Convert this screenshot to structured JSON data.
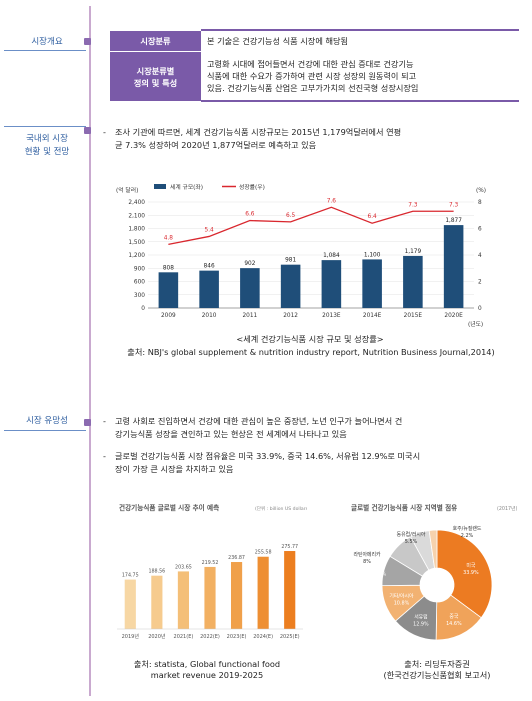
{
  "sections": {
    "overview": "시장개요",
    "status": [
      "국내외 시장",
      "현황 및 전망"
    ],
    "promising": "시장 유망성"
  },
  "classification": {
    "row1_head": "시장분류",
    "row1_value": "본 기술은 건강기능성 식품 시장에 해당됨",
    "row2_head": [
      "시장분류별",
      "정의 및 특성"
    ],
    "row2_value": [
      "고령화 시대에 접어들면서 건강에 대한 관심 증대로 건강기능",
      "식품에 대한 수요가 증가하여 관련 시장 성장의 원동력이 되고",
      "있음. 건강기능식품 산업은 고부가가치의 선진국형 성장시장임"
    ]
  },
  "bullets": {
    "b1": [
      "조사 기관에 따르면, 세계 건강기능식품 시장규모는 2015년 1,179억달러에서 연평",
      "균 7.3% 성장하여 2020년 1,877억달러로 예측하고 있음"
    ],
    "b2": [
      "고령 사회로 진입하면서 건강에 대한 관심이 높은 중장년, 노년 인구가 늘어나면서 건",
      "강기능식품 성장을 견인하고 있는 현상은 전 세계에서 나타나고 있음"
    ],
    "b3": [
      "글로벌 건강기능식품 시장 점유율은 미국 33.9%, 중국 14.6%, 서유럽 12.9%로 미국시",
      "장이 가장 큰 시장을 차지하고 있음"
    ],
    "dash": "-"
  },
  "captions": {
    "chart1_title": "<세계 건강기능식품 시장 규모 및 성장률>",
    "chart1_source": "출처: NBJ's global supplement & nutrition industry report, Nutrition Business Journal,2014)",
    "chart2_source": [
      "출처: statista, Global functional food",
      "market revenue 2019-2025"
    ],
    "chart3_source": [
      "출처: 리딩투자증권",
      "(한국건강기능신품협회 보고서)"
    ]
  },
  "chart_data": [
    {
      "type": "bar",
      "ylabel": "(억 달러)",
      "y2label": "(%)",
      "xunit": "(년도)",
      "legend": [
        "세계 규모(좌)",
        "성장률(우)"
      ],
      "categories": [
        "2009",
        "2010",
        "2011",
        "2012",
        "2013E",
        "2014E",
        "2015E",
        "2020E"
      ],
      "values": [
        808,
        846,
        902,
        981,
        1084,
        1100,
        1179,
        1877
      ],
      "value_labels": [
        "808",
        "846",
        "902",
        "981",
        "1,084",
        "1,100",
        "1,179",
        "1,877"
      ],
      "growth": [
        4.8,
        5.4,
        6.6,
        6.5,
        7.6,
        6.4,
        7.3,
        7.3
      ],
      "yticks": [
        "0",
        "300",
        "600",
        "900",
        "1,200",
        "1,500",
        "1,800",
        "2,100",
        "2,400"
      ],
      "ylim": [
        0,
        2400
      ],
      "y2ticks": [
        "0",
        "2",
        "4",
        "6",
        "8"
      ],
      "y2lim": [
        0,
        8
      ],
      "colors": {
        "bar": "#1f4e79",
        "line": "#d9272e"
      }
    },
    {
      "type": "bar",
      "title": "건강기능식품 글로벌 시장 추이 예측",
      "unit": "(단위 : billion US dollars)",
      "categories": [
        "2019년",
        "2020년",
        "2021(E)",
        "2022(E)",
        "2023(E)",
        "2024(E)",
        "2025(E)"
      ],
      "values": [
        174.75,
        188.56,
        203.65,
        219.52,
        236.87,
        255.58,
        275.77
      ],
      "value_labels": [
        "174.75",
        "188.56",
        "203.65",
        "219.52",
        "236.87",
        "255.58",
        "275.77"
      ],
      "colors": [
        "#f7d7a4",
        "#f6cb8e",
        "#f4bf78",
        "#f2b062",
        "#f0a04a",
        "#ee8f33",
        "#ec7e1f"
      ]
    },
    {
      "type": "pie",
      "title": "글로벌 건강기능식품 시장 지역별 점유",
      "title_note": "(2017년)",
      "slices": [
        {
          "name": "미국",
          "value": 33.9,
          "label": "33.9%",
          "color": "#ec7b22"
        },
        {
          "name": "중국",
          "value": 14.6,
          "label": "14.6%",
          "color": "#f0a35a"
        },
        {
          "name": "서유럽",
          "value": 12.9,
          "label": "12.9%",
          "color": "#8c8c8c"
        },
        {
          "name": "기타/아시아",
          "value": 10.8,
          "label": "10.8%",
          "color": "#f2b272"
        },
        {
          "name": "일본",
          "value": 8.6,
          "label": "8.6%",
          "color": "#a5a5a5"
        },
        {
          "name": "라틴아메리카",
          "value": 8.0,
          "label": "8%",
          "color": "#c8c8c8"
        },
        {
          "name": "동유럽/러시아",
          "value": 5.5,
          "label": "5.5%",
          "color": "#dadada"
        },
        {
          "name": "호주/뉴질랜드",
          "value": 2.2,
          "label": "2.2%",
          "color": "#f6d2ad"
        }
      ]
    }
  ]
}
